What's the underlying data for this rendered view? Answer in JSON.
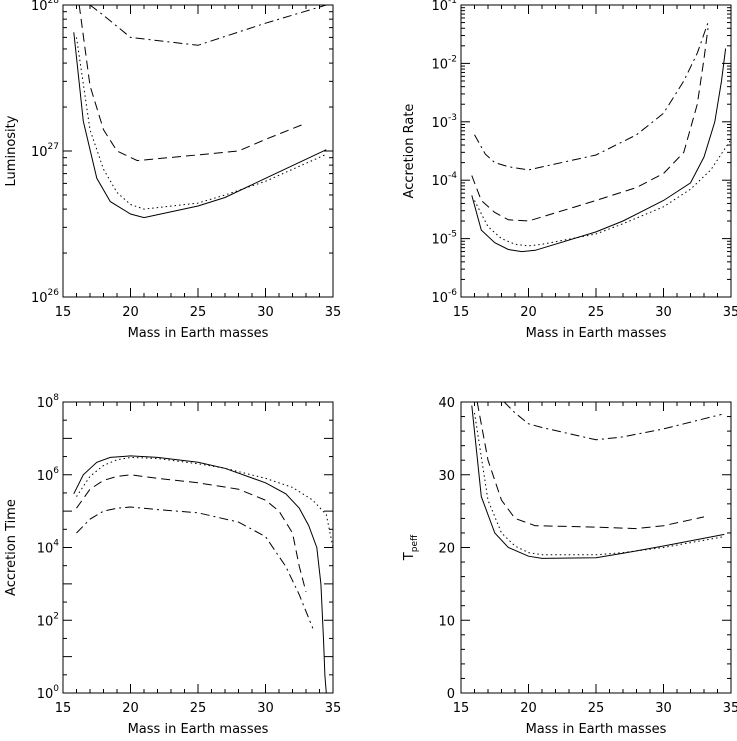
{
  "chart_data": [
    {
      "type": "line",
      "xlabel": "Mass in Earth masses",
      "ylabel": "Luminosity",
      "xlim": [
        15,
        35
      ],
      "ylim": [
        1e+26,
        1e+28
      ],
      "yscale": "log",
      "xticks": [
        15,
        20,
        25,
        30,
        35
      ],
      "yticks": [
        {
          "value": 1e+26,
          "base": "10",
          "exp": "26"
        },
        {
          "value": 1e+27,
          "base": "10",
          "exp": "27"
        },
        {
          "value": 1e+28,
          "base": "10",
          "exp": "28"
        }
      ],
      "legend": "none",
      "series": [
        {
          "style": "solid",
          "x": [
            15.8,
            16.5,
            17.5,
            18.5,
            20,
            21,
            25,
            27,
            30,
            34.5
          ],
          "y": [
            6.5e+27,
            1.6e+27,
            6.5e+26,
            4.5e+26,
            3.7e+26,
            3.5e+26,
            4.2e+26,
            4.8e+26,
            6.5e+26,
            1.02e+27
          ]
        },
        {
          "style": "dotted",
          "x": [
            16,
            17,
            18,
            19,
            20,
            21,
            25,
            27,
            30,
            34.5
          ],
          "y": [
            6e+27,
            1.4e+27,
            7.5e+26,
            5.2e+26,
            4.3e+26,
            4e+26,
            4.4e+26,
            5e+26,
            6.2e+26,
            9.5e+26
          ]
        },
        {
          "style": "dashed",
          "x": [
            16.2,
            17,
            18,
            19,
            20.5,
            25,
            28,
            30,
            33
          ],
          "y": [
            1e+28,
            2.8e+27,
            1.4e+27,
            1e+27,
            8.6e+26,
            9.4e+26,
            1e+27,
            1.2e+27,
            1.55e+27
          ]
        },
        {
          "style": "dashdot",
          "x": [
            17,
            18,
            20,
            25,
            30,
            34.5
          ],
          "y": [
            1e+28,
            8.5e+27,
            6e+27,
            5.3e+27,
            7.5e+27,
            1e+28
          ]
        }
      ]
    },
    {
      "type": "line",
      "xlabel": "Mass in Earth masses",
      "ylabel": "Accretion Rate",
      "xlim": [
        15,
        35
      ],
      "ylim": [
        1e-06,
        0.1
      ],
      "yscale": "log",
      "xticks": [
        15,
        20,
        25,
        30,
        35
      ],
      "yticks": [
        {
          "value": 1e-06,
          "base": "10",
          "exp": "-6"
        },
        {
          "value": 1e-05,
          "base": "10",
          "exp": "-5"
        },
        {
          "value": 0.0001,
          "base": "10",
          "exp": "-4"
        },
        {
          "value": 0.001,
          "base": "10",
          "exp": "-3"
        },
        {
          "value": 0.01,
          "base": "10",
          "exp": "-2"
        },
        {
          "value": 0.1,
          "base": "10",
          "exp": "-1"
        }
      ],
      "legend": "none",
      "series": [
        {
          "style": "solid",
          "x": [
            15.8,
            16.5,
            17.5,
            18.5,
            19.5,
            20.5,
            25,
            27,
            30,
            32,
            33,
            33.8,
            34.3,
            34.6
          ],
          "y": [
            5.5e-05,
            1.4e-05,
            8.5e-06,
            6.5e-06,
            6e-06,
            6.3e-06,
            1.3e-05,
            2e-05,
            4.5e-05,
            9e-05,
            0.00025,
            0.001,
            0.005,
            0.018
          ]
        },
        {
          "style": "dotted",
          "x": [
            16,
            17,
            18,
            19,
            20,
            21,
            25,
            27,
            30,
            32,
            33.5,
            35
          ],
          "y": [
            4.5e-05,
            1.6e-05,
            1e-05,
            8e-06,
            7.5e-06,
            8e-06,
            1.2e-05,
            1.8e-05,
            3.5e-05,
            7e-05,
            0.00015,
            0.0005
          ]
        },
        {
          "style": "dashed",
          "x": [
            15.8,
            16.5,
            17.5,
            18.5,
            20,
            25,
            28,
            30,
            31.5,
            32.5,
            33,
            33.3
          ],
          "y": [
            0.00012,
            4.5e-05,
            2.8e-05,
            2.1e-05,
            2e-05,
            4.5e-05,
            7.5e-05,
            0.00013,
            0.0003,
            0.002,
            0.012,
            0.04
          ]
        },
        {
          "style": "dashdot",
          "x": [
            16,
            16.8,
            17.5,
            18.5,
            20,
            25,
            28,
            30,
            31.5,
            32.5,
            33.3
          ],
          "y": [
            0.0006,
            0.00028,
            0.0002,
            0.00017,
            0.00015,
            0.00027,
            0.0006,
            0.0014,
            0.005,
            0.015,
            0.05
          ]
        }
      ]
    },
    {
      "type": "line",
      "xlabel": "Mass in Earth masses",
      "ylabel": "Accretion Time",
      "xlim": [
        15,
        35
      ],
      "ylim": [
        1,
        100000000.0
      ],
      "yscale": "log",
      "xticks": [
        15,
        20,
        25,
        30,
        35
      ],
      "yticks": [
        {
          "value": 1,
          "base": "10",
          "exp": "0"
        },
        {
          "value": 100,
          "base": "10",
          "exp": "2"
        },
        {
          "value": 10000,
          "base": "10",
          "exp": "4"
        },
        {
          "value": 1000000,
          "base": "10",
          "exp": "6"
        },
        {
          "value": 100000000,
          "base": "10",
          "exp": "8"
        }
      ],
      "legend": "none",
      "series": [
        {
          "style": "solid",
          "x": [
            15.8,
            16.5,
            17.5,
            18.5,
            20,
            22,
            25,
            27,
            30,
            31.5,
            32.5,
            33.2,
            33.8,
            34.1,
            34.3,
            34.4,
            34.5
          ],
          "y": [
            300000.0,
            1000000.0,
            2200000.0,
            3000000.0,
            3300000.0,
            3000000.0,
            2200000.0,
            1500000.0,
            600000.0,
            300000.0,
            120000.0,
            40000.0,
            10000.0,
            1000,
            30,
            3,
            1
          ]
        },
        {
          "style": "dotted",
          "x": [
            16,
            17,
            18,
            19,
            20,
            22,
            25,
            27,
            30,
            32,
            33.5,
            34.5,
            35
          ],
          "y": [
            250000.0,
            900000.0,
            1800000.0,
            2600000.0,
            3000000.0,
            2800000.0,
            2000000.0,
            1500000.0,
            800000.0,
            450000.0,
            200000.0,
            80000.0,
            10000.0
          ]
        },
        {
          "style": "dashed",
          "x": [
            16,
            17,
            18,
            19,
            20,
            22,
            25,
            28,
            30,
            31,
            32,
            32.5,
            33
          ],
          "y": [
            120000.0,
            400000.0,
            700000.0,
            900000.0,
            1000000.0,
            800000.0,
            600000.0,
            400000.0,
            200000.0,
            100000.0,
            25000.0,
            3000.0,
            600
          ]
        },
        {
          "style": "dashdot",
          "x": [
            16,
            17,
            18,
            19,
            20,
            22,
            25,
            28,
            30,
            31.5,
            32.5,
            33.5
          ],
          "y": [
            25000.0,
            60000.0,
            100000.0,
            120000.0,
            130000.0,
            110000.0,
            90000.0,
            50000.0,
            20000.0,
            3000.0,
            500,
            60
          ]
        }
      ]
    },
    {
      "type": "line",
      "xlabel": "Mass in Earth masses",
      "ylabel_main": "T",
      "ylabel_sub": "peff",
      "xlim": [
        15,
        35
      ],
      "ylim": [
        0,
        40
      ],
      "yscale": "linear",
      "xticks": [
        15,
        20,
        25,
        30,
        35
      ],
      "yticks": [
        0,
        10,
        20,
        30,
        40
      ],
      "legend": "none",
      "series": [
        {
          "style": "solid",
          "x": [
            15.8,
            16.5,
            17.5,
            18.5,
            20,
            21,
            25,
            27,
            30,
            34.5
          ],
          "y": [
            39.5,
            27,
            22,
            20,
            18.8,
            18.5,
            18.6,
            19.2,
            20.2,
            21.8
          ]
        },
        {
          "style": "dotted",
          "x": [
            16,
            17,
            18,
            19,
            20,
            21,
            25,
            27,
            30,
            34.5
          ],
          "y": [
            38.5,
            26.5,
            22,
            20.2,
            19.3,
            19,
            19,
            19.3,
            20,
            21.5
          ]
        },
        {
          "style": "dashed",
          "x": [
            16.2,
            17,
            18,
            19,
            20.5,
            25,
            28,
            30,
            33
          ],
          "y": [
            40,
            32,
            26.5,
            24,
            23,
            22.8,
            22.6,
            23,
            24.2
          ]
        },
        {
          "style": "dashdot",
          "x": [
            18.2,
            19,
            20,
            21,
            25,
            27,
            30,
            34.3
          ],
          "y": [
            40,
            38.5,
            37,
            36.5,
            34.8,
            35.2,
            36.3,
            38.3
          ]
        }
      ]
    }
  ]
}
